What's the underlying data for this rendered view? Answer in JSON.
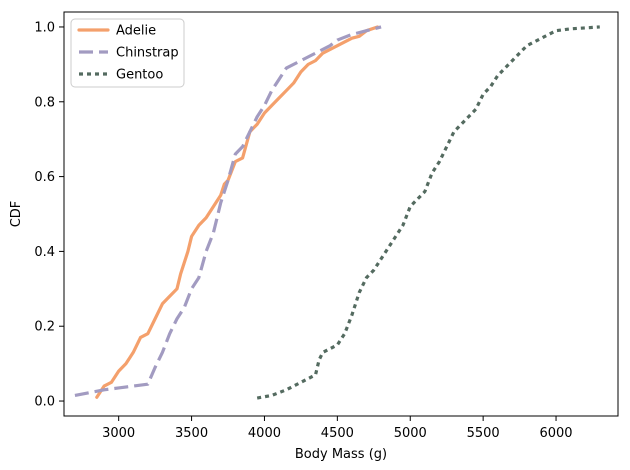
{
  "chart_data": {
    "type": "line",
    "title": "",
    "xlabel": "Body Mass (g)",
    "ylabel": "CDF",
    "xlim": [
      2625,
      6425
    ],
    "ylim": [
      -0.04,
      1.04
    ],
    "xticks": [
      3000,
      3500,
      4000,
      4500,
      5000,
      5500,
      6000
    ],
    "xtick_labels": [
      "3000",
      "3500",
      "4000",
      "4500",
      "5000",
      "5500",
      "6000"
    ],
    "yticks": [
      0.0,
      0.2,
      0.4,
      0.6,
      0.8,
      1.0
    ],
    "ytick_labels": [
      "0.0",
      "0.2",
      "0.4",
      "0.6",
      "0.8",
      "1.0"
    ],
    "grid": false,
    "legend_position": "top-left",
    "series": [
      {
        "name": "Adelie",
        "color": "#f4a06c",
        "style": "solid",
        "points": [
          [
            2850,
            0.01
          ],
          [
            2900,
            0.04
          ],
          [
            2950,
            0.05
          ],
          [
            3000,
            0.08
          ],
          [
            3050,
            0.1
          ],
          [
            3100,
            0.13
          ],
          [
            3150,
            0.17
          ],
          [
            3200,
            0.18
          ],
          [
            3250,
            0.22
          ],
          [
            3300,
            0.26
          ],
          [
            3350,
            0.28
          ],
          [
            3400,
            0.3
          ],
          [
            3425,
            0.34
          ],
          [
            3450,
            0.37
          ],
          [
            3475,
            0.4
          ],
          [
            3500,
            0.44
          ],
          [
            3550,
            0.47
          ],
          [
            3600,
            0.49
          ],
          [
            3650,
            0.52
          ],
          [
            3700,
            0.55
          ],
          [
            3725,
            0.58
          ],
          [
            3750,
            0.59
          ],
          [
            3800,
            0.64
          ],
          [
            3850,
            0.65
          ],
          [
            3900,
            0.72
          ],
          [
            3950,
            0.74
          ],
          [
            4000,
            0.77
          ],
          [
            4050,
            0.79
          ],
          [
            4100,
            0.81
          ],
          [
            4150,
            0.83
          ],
          [
            4200,
            0.85
          ],
          [
            4250,
            0.88
          ],
          [
            4300,
            0.9
          ],
          [
            4350,
            0.91
          ],
          [
            4400,
            0.93
          ],
          [
            4450,
            0.94
          ],
          [
            4500,
            0.95
          ],
          [
            4550,
            0.96
          ],
          [
            4600,
            0.97
          ],
          [
            4650,
            0.975
          ],
          [
            4700,
            0.99
          ],
          [
            4775,
            1.0
          ]
        ]
      },
      {
        "name": "Chinstrap",
        "color": "#a29bc1",
        "style": "dashed",
        "points": [
          [
            2700,
            0.015
          ],
          [
            2900,
            0.03
          ],
          [
            3000,
            0.035
          ],
          [
            3100,
            0.04
          ],
          [
            3200,
            0.045
          ],
          [
            3250,
            0.09
          ],
          [
            3300,
            0.13
          ],
          [
            3350,
            0.18
          ],
          [
            3400,
            0.22
          ],
          [
            3450,
            0.25
          ],
          [
            3500,
            0.3
          ],
          [
            3550,
            0.33
          ],
          [
            3600,
            0.4
          ],
          [
            3650,
            0.45
          ],
          [
            3700,
            0.53
          ],
          [
            3750,
            0.59
          ],
          [
            3800,
            0.66
          ],
          [
            3850,
            0.68
          ],
          [
            3900,
            0.72
          ],
          [
            3950,
            0.76
          ],
          [
            4000,
            0.79
          ],
          [
            4050,
            0.83
          ],
          [
            4100,
            0.86
          ],
          [
            4150,
            0.89
          ],
          [
            4250,
            0.91
          ],
          [
            4350,
            0.93
          ],
          [
            4400,
            0.94
          ],
          [
            4450,
            0.95
          ],
          [
            4500,
            0.965
          ],
          [
            4600,
            0.98
          ],
          [
            4700,
            0.99
          ],
          [
            4800,
            1.0
          ]
        ]
      },
      {
        "name": "Gentoo",
        "color": "#546b60",
        "style": "dotted",
        "points": [
          [
            3950,
            0.008
          ],
          [
            4050,
            0.015
          ],
          [
            4150,
            0.03
          ],
          [
            4250,
            0.05
          ],
          [
            4350,
            0.07
          ],
          [
            4375,
            0.11
          ],
          [
            4400,
            0.13
          ],
          [
            4500,
            0.15
          ],
          [
            4550,
            0.18
          ],
          [
            4600,
            0.23
          ],
          [
            4650,
            0.29
          ],
          [
            4700,
            0.33
          ],
          [
            4750,
            0.35
          ],
          [
            4800,
            0.38
          ],
          [
            4850,
            0.41
          ],
          [
            4900,
            0.44
          ],
          [
            4950,
            0.47
          ],
          [
            5000,
            0.52
          ],
          [
            5100,
            0.56
          ],
          [
            5150,
            0.61
          ],
          [
            5200,
            0.64
          ],
          [
            5250,
            0.68
          ],
          [
            5300,
            0.72
          ],
          [
            5350,
            0.74
          ],
          [
            5400,
            0.76
          ],
          [
            5450,
            0.78
          ],
          [
            5500,
            0.82
          ],
          [
            5550,
            0.84
          ],
          [
            5600,
            0.87
          ],
          [
            5650,
            0.89
          ],
          [
            5700,
            0.91
          ],
          [
            5750,
            0.93
          ],
          [
            5800,
            0.95
          ],
          [
            5850,
            0.96
          ],
          [
            5950,
            0.98
          ],
          [
            6000,
            0.99
          ],
          [
            6100,
            0.995
          ],
          [
            6300,
            1.0
          ]
        ]
      }
    ]
  }
}
